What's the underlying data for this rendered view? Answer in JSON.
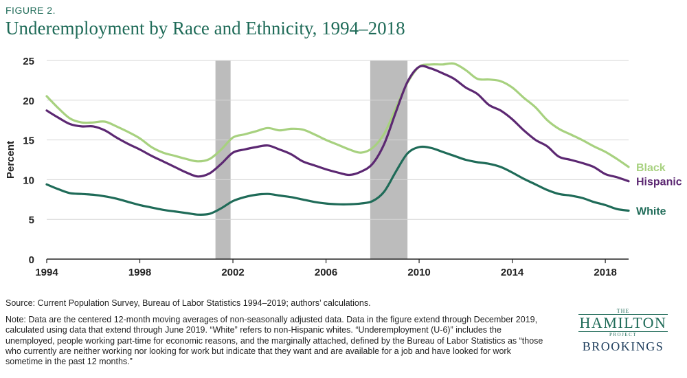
{
  "figure_label": "FIGURE 2.",
  "title": "Underemployment by Race and Ethnicity, 1994–2018",
  "source": "Source: Current Population Survey, Bureau of Labor Statistics 1994–2019; authors’ calculations.",
  "note": "Note: Data are the centered 12-month moving averages of non-seasonally adjusted data. Data in the figure extend through December 2019, calculated using data that extend through June 2019. “White” refers to non-Hispanic whites. “Underemployment (U-6)” includes the unemployed, people working part-time for economic reasons, and the marginally attached, defined by the Bureau of Labor Statistics as “those who currently are neither working nor looking for work but indicate that they want and are available for a job and have looked for work sometime in the past 12 months.”",
  "logo": {
    "the": "THE",
    "hamilton": "HAMILTON",
    "project": "PROJECT",
    "brookings": "BROOKINGS"
  },
  "chart_data": {
    "type": "line",
    "title": "Underemployment by Race and Ethnicity, 1994–2018",
    "xlabel": "",
    "ylabel": "Percent",
    "xlim": [
      1994,
      2019
    ],
    "ylim": [
      0,
      25
    ],
    "x_ticks": [
      1994,
      1998,
      2002,
      2006,
      2010,
      2014,
      2018
    ],
    "y_ticks": [
      0,
      5,
      10,
      15,
      20,
      25
    ],
    "grid": true,
    "recessions": [
      [
        2001.25,
        2001.9
      ],
      [
        2007.9,
        2009.5
      ]
    ],
    "series": [
      {
        "name": "Black",
        "color": "#a7d17f",
        "x": [
          1994,
          1994.5,
          1995,
          1995.5,
          1996,
          1996.5,
          1997,
          1997.5,
          1998,
          1998.5,
          1999,
          1999.5,
          2000,
          2000.5,
          2001,
          2001.5,
          2002,
          2002.5,
          2003,
          2003.5,
          2004,
          2004.5,
          2005,
          2005.5,
          2006,
          2006.5,
          2007,
          2007.5,
          2008,
          2008.5,
          2009,
          2009.5,
          2010,
          2010.5,
          2011,
          2011.5,
          2012,
          2012.5,
          2013,
          2013.5,
          2014,
          2014.5,
          2015,
          2015.5,
          2016,
          2016.5,
          2017,
          2017.5,
          2018,
          2018.5,
          2019
        ],
        "values": [
          20.5,
          19.0,
          17.7,
          17.2,
          17.2,
          17.3,
          16.7,
          16.0,
          15.2,
          14.1,
          13.4,
          13.0,
          12.6,
          12.3,
          12.6,
          13.8,
          15.3,
          15.7,
          16.1,
          16.5,
          16.2,
          16.4,
          16.3,
          15.7,
          15.0,
          14.4,
          13.8,
          13.4,
          14.0,
          15.8,
          19.0,
          22.2,
          24.2,
          24.5,
          24.5,
          24.6,
          23.8,
          22.7,
          22.6,
          22.4,
          21.6,
          20.3,
          19.1,
          17.5,
          16.4,
          15.7,
          15.0,
          14.2,
          13.5,
          12.6,
          11.6
        ]
      },
      {
        "name": "Hispanic",
        "color": "#5c2872",
        "x": [
          1994,
          1994.5,
          1995,
          1995.5,
          1996,
          1996.5,
          1997,
          1997.5,
          1998,
          1998.5,
          1999,
          1999.5,
          2000,
          2000.5,
          2001,
          2001.5,
          2002,
          2002.5,
          2003,
          2003.5,
          2004,
          2004.5,
          2005,
          2005.5,
          2006,
          2006.5,
          2007,
          2007.5,
          2008,
          2008.5,
          2009,
          2009.5,
          2010,
          2010.5,
          2011,
          2011.5,
          2012,
          2012.5,
          2013,
          2013.5,
          2014,
          2014.5,
          2015,
          2015.5,
          2016,
          2016.5,
          2017,
          2017.5,
          2018,
          2018.5,
          2019
        ],
        "values": [
          18.7,
          17.8,
          17.0,
          16.7,
          16.7,
          16.2,
          15.3,
          14.5,
          13.8,
          13.0,
          12.3,
          11.6,
          10.9,
          10.4,
          10.8,
          12.0,
          13.4,
          13.8,
          14.1,
          14.3,
          13.8,
          13.2,
          12.3,
          11.8,
          11.3,
          10.9,
          10.6,
          11.0,
          12.0,
          14.5,
          18.5,
          22.3,
          24.2,
          24.0,
          23.4,
          22.7,
          21.6,
          20.8,
          19.4,
          18.7,
          17.6,
          16.2,
          15.0,
          14.2,
          12.9,
          12.5,
          12.1,
          11.6,
          10.7,
          10.3,
          9.8
        ]
      },
      {
        "name": "White",
        "color": "#1f6b58",
        "x": [
          1994,
          1994.5,
          1995,
          1995.5,
          1996,
          1996.5,
          1997,
          1997.5,
          1998,
          1998.5,
          1999,
          1999.5,
          2000,
          2000.5,
          2001,
          2001.5,
          2002,
          2002.5,
          2003,
          2003.5,
          2004,
          2004.5,
          2005,
          2005.5,
          2006,
          2006.5,
          2007,
          2007.5,
          2008,
          2008.5,
          2009,
          2009.5,
          2010,
          2010.5,
          2011,
          2011.5,
          2012,
          2012.5,
          2013,
          2013.5,
          2014,
          2014.5,
          2015,
          2015.5,
          2016,
          2016.5,
          2017,
          2017.5,
          2018,
          2018.5,
          2019
        ],
        "values": [
          9.4,
          8.8,
          8.3,
          8.2,
          8.1,
          7.9,
          7.6,
          7.2,
          6.8,
          6.5,
          6.2,
          6.0,
          5.8,
          5.6,
          5.7,
          6.4,
          7.3,
          7.8,
          8.1,
          8.2,
          8.0,
          7.8,
          7.5,
          7.2,
          7.0,
          6.9,
          6.9,
          7.0,
          7.3,
          8.5,
          11.0,
          13.3,
          14.1,
          14.0,
          13.5,
          13.0,
          12.5,
          12.2,
          12.0,
          11.6,
          10.9,
          10.1,
          9.4,
          8.7,
          8.2,
          8.0,
          7.7,
          7.2,
          6.8,
          6.3,
          6.1
        ]
      }
    ]
  }
}
